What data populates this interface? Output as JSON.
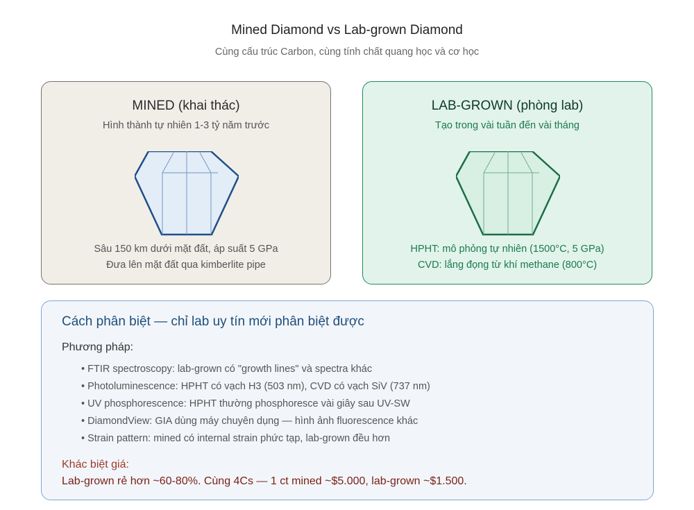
{
  "title": "Mined Diamond vs Lab-grown Diamond",
  "subtitle": "Cùng cấu trúc Carbon, cùng tính chất quang học và cơ học",
  "mined": {
    "title": "MINED (khai thác)",
    "subtitle": "Hình thành tự nhiên 1-3 tỷ năm trước",
    "line1": "Sâu 150 km dưới mặt đất, áp suất 5 GPa",
    "line2": "Đưa lên mặt đất qua kimberlite pipe",
    "color": "#1f4e8a"
  },
  "lab": {
    "title": "LAB-GROWN (phòng lab)",
    "subtitle": "Tạo trong vài tuần đến vài tháng",
    "line1": "HPHT: mô phỏng tự nhiên (1500°C, 5 GPa)",
    "line2": "CVD: lắng đọng từ khí methane (800°C)",
    "color": "#1b6e45"
  },
  "distinguish": {
    "title": "Cách phân biệt — chỉ lab uy tín mới phân biệt được",
    "methods_label": "Phương pháp:",
    "methods": [
      "• FTIR spectroscopy: lab-grown có \"growth lines\" và spectra khác",
      "• Photoluminescence: HPHT có vạch H3 (503 nm), CVD có vạch SiV (737 nm)",
      "• UV phosphorescence: HPHT thường phosphoresce vài giây sau UV-SW",
      "• DiamondView: GIA dùng máy chuyên dụng — hình ảnh fluorescence khác",
      "• Strain pattern: mined có internal strain phức tạp, lab-grown đều hơn"
    ],
    "price_label": "Khác biệt giá:",
    "price_text": "Lab-grown rẻ hơn ~60-80%. Cùng 4Cs — 1 ct mined ~$5.000, lab-grown ~$1.500."
  }
}
